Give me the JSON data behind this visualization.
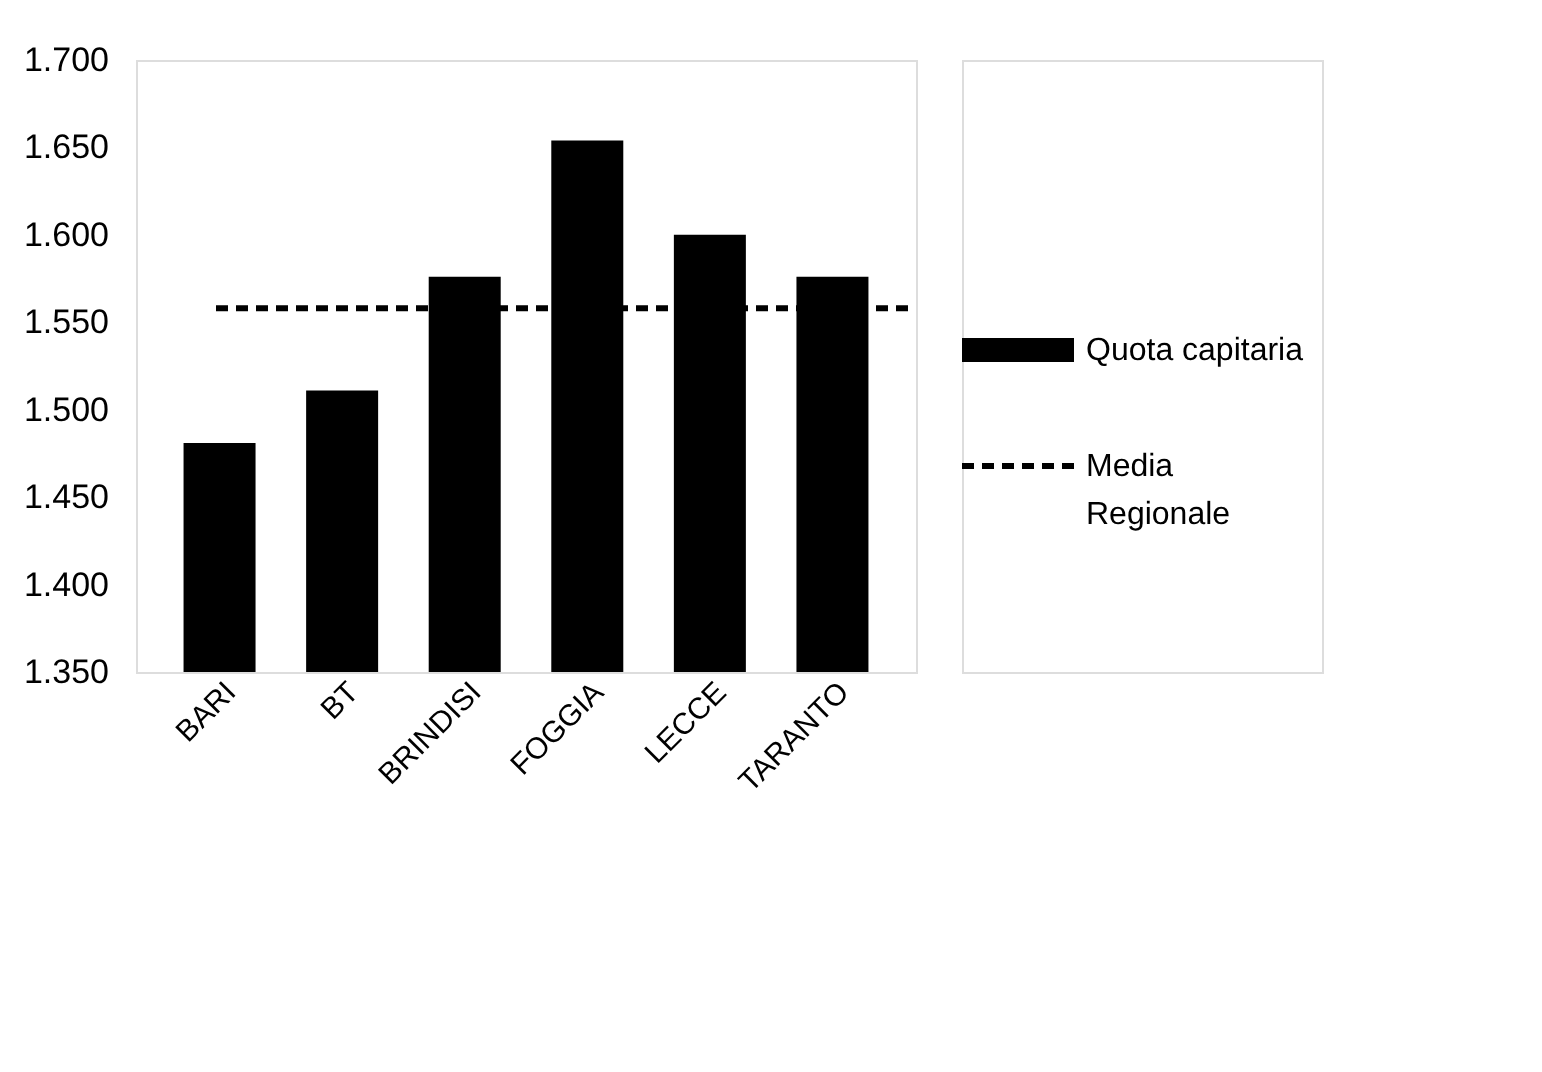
{
  "chart_data": {
    "type": "bar",
    "categories": [
      "BARI",
      "BT",
      "BRINDISI",
      "FOGGIA",
      "LECCE",
      "TARANTO"
    ],
    "series": [
      {
        "name": "Quota capitaria",
        "color": "#000000",
        "values": [
          1481,
          1511,
          1576,
          1654,
          1600,
          1576
        ]
      }
    ],
    "ylim": [
      1350,
      1700
    ],
    "yticks": [
      {
        "value": 1350,
        "label": "1.350"
      },
      {
        "value": 1400,
        "label": "1.400"
      },
      {
        "value": 1450,
        "label": "1.450"
      },
      {
        "value": 1500,
        "label": "1.500"
      },
      {
        "value": 1550,
        "label": "1.550"
      },
      {
        "value": 1600,
        "label": "1.600"
      },
      {
        "value": 1650,
        "label": "1.650"
      },
      {
        "value": 1700,
        "label": "1.700"
      }
    ],
    "ref_lines": [
      {
        "axis": "y",
        "value": 1558,
        "label": "Media Regionale",
        "color": "#000000",
        "line_style": "dashed"
      }
    ],
    "grid": false,
    "legend": "right"
  }
}
